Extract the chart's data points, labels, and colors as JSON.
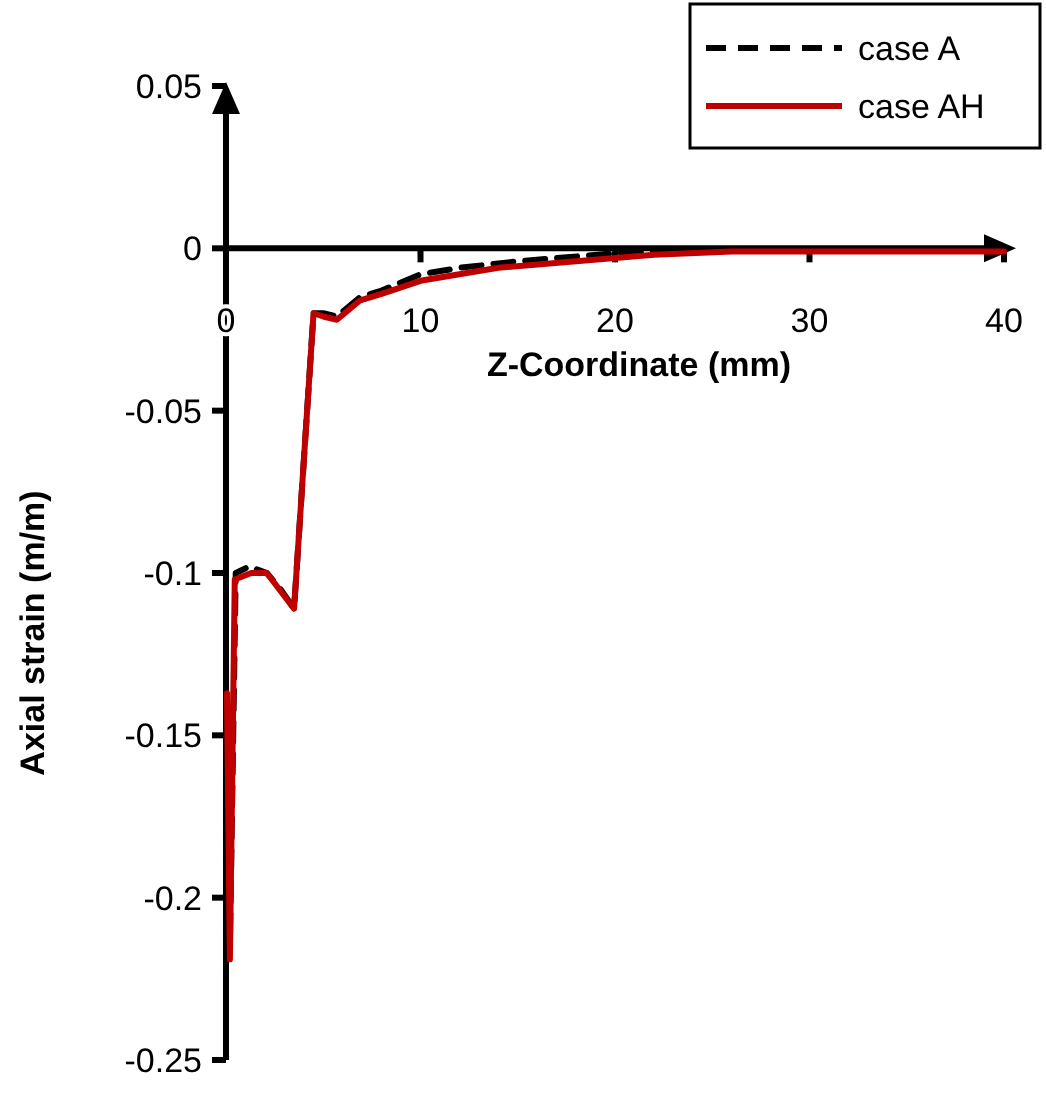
{
  "chart_data": {
    "type": "line",
    "xlabel": "Z-Coordinate (mm)",
    "ylabel": "Axial strain (m/m)",
    "xlim": [
      0,
      40
    ],
    "ylim": [
      -0.25,
      0.05
    ],
    "xticks": [
      0,
      10,
      20,
      30,
      40
    ],
    "yticks": [
      -0.25,
      -0.2,
      -0.15,
      -0.1,
      -0.05,
      0,
      0.05
    ],
    "grid": false,
    "legend": "top right",
    "series": [
      {
        "name": "case A",
        "color": "#000000",
        "line_style": "dashed",
        "x": [
          0.05,
          0.2,
          0.5,
          1.2,
          2.1,
          2.8,
          3.5,
          4.5,
          5.0,
          5.7,
          6.9,
          8,
          10,
          12,
          15,
          20,
          25,
          30,
          35,
          40
        ],
        "values": [
          -0.14,
          -0.215,
          -0.1,
          -0.098,
          -0.1,
          -0.105,
          -0.111,
          -0.02,
          -0.02,
          -0.021,
          -0.015,
          -0.013,
          -0.008,
          -0.006,
          -0.004,
          -0.0015,
          -0.0005,
          -0.0003,
          -0.0003,
          -0.0003
        ]
      },
      {
        "name": "case AH",
        "color": "#c00000",
        "line_style": "solid",
        "x": [
          0.05,
          0.2,
          0.45,
          1.3,
          2.1,
          3.5,
          4.5,
          5.0,
          5.7,
          6.9,
          8,
          10,
          12,
          14,
          18,
          22,
          26,
          30,
          35,
          40
        ],
        "values": [
          -0.137,
          -0.219,
          -0.102,
          -0.1,
          -0.1,
          -0.111,
          -0.02,
          -0.021,
          -0.022,
          -0.016,
          -0.014,
          -0.01,
          -0.008,
          -0.006,
          -0.004,
          -0.002,
          -0.001,
          -0.001,
          -0.001,
          -0.001
        ]
      }
    ]
  }
}
